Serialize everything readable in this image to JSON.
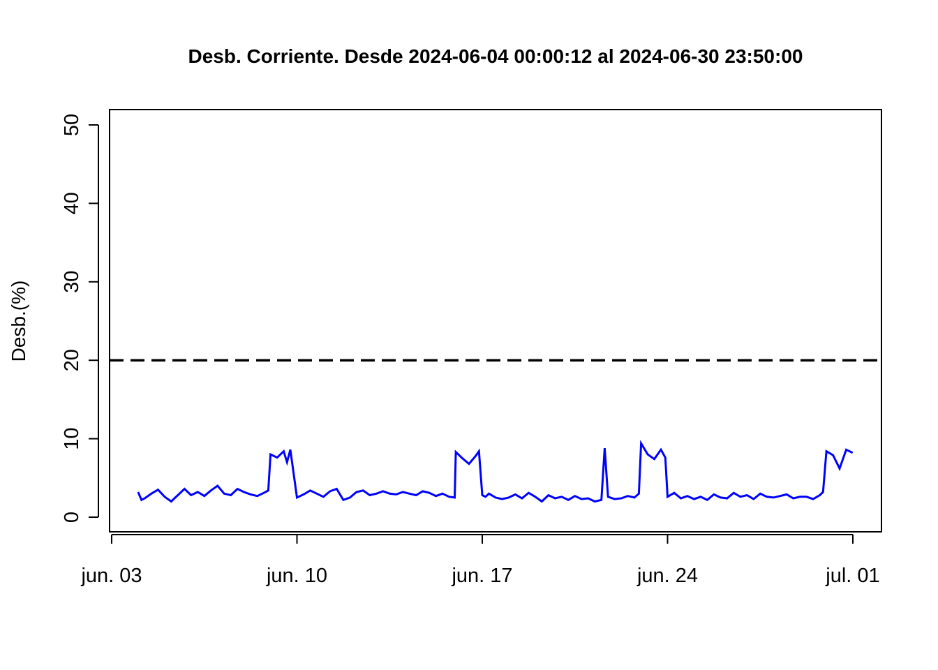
{
  "chart_data": {
    "type": "line",
    "title": "Desb. Corriente. Desde  2024-06-04 00:00:12  al  2024-06-30 23:50:00",
    "xlabel": "",
    "ylabel": "Desb.(%)",
    "xlim": [
      "2024-06-03",
      "2024-07-01"
    ],
    "ylim": [
      0,
      50
    ],
    "x_ticks": [
      {
        "date": "2024-06-03",
        "label": "jun. 03"
      },
      {
        "date": "2024-06-10",
        "label": "jun. 10"
      },
      {
        "date": "2024-06-17",
        "label": "jun. 17"
      },
      {
        "date": "2024-06-24",
        "label": "jun. 24"
      },
      {
        "date": "2024-07-01",
        "label": "jul. 01"
      }
    ],
    "y_ticks": [
      0,
      10,
      20,
      30,
      40,
      50
    ],
    "grid": false,
    "threshold": {
      "value": 20,
      "style": "dashed",
      "color": "#000000"
    },
    "series": [
      {
        "color": "#0000ff",
        "x": [
          "2024-06-04 00:00",
          "2024-06-04 03:00",
          "2024-06-04 06:00",
          "2024-06-04 12:00",
          "2024-06-04 18:00",
          "2024-06-05 00:00",
          "2024-06-05 06:00",
          "2024-06-05 12:00",
          "2024-06-05 18:00",
          "2024-06-06 00:00",
          "2024-06-06 06:00",
          "2024-06-06 12:00",
          "2024-06-06 18:00",
          "2024-06-07 00:00",
          "2024-06-07 06:00",
          "2024-06-07 12:00",
          "2024-06-07 18:00",
          "2024-06-08 00:00",
          "2024-06-08 06:00",
          "2024-06-08 12:00",
          "2024-06-08 18:00",
          "2024-06-08 22:00",
          "2024-06-09 00:00",
          "2024-06-09 06:00",
          "2024-06-09 12:00",
          "2024-06-09 15:00",
          "2024-06-09 18:00",
          "2024-06-10 00:00",
          "2024-06-10 06:00",
          "2024-06-10 12:00",
          "2024-06-10 18:00",
          "2024-06-11 00:00",
          "2024-06-11 06:00",
          "2024-06-11 12:00",
          "2024-06-11 18:00",
          "2024-06-12 00:00",
          "2024-06-12 06:00",
          "2024-06-12 12:00",
          "2024-06-12 18:00",
          "2024-06-13 00:00",
          "2024-06-13 06:00",
          "2024-06-13 12:00",
          "2024-06-13 18:00",
          "2024-06-14 00:00",
          "2024-06-14 06:00",
          "2024-06-14 12:00",
          "2024-06-14 18:00",
          "2024-06-15 00:00",
          "2024-06-15 06:00",
          "2024-06-15 12:00",
          "2024-06-15 18:00",
          "2024-06-15 23:00",
          "2024-06-16 00:00",
          "2024-06-16 06:00",
          "2024-06-16 12:00",
          "2024-06-16 18:00",
          "2024-06-16 21:00",
          "2024-06-17 00:00",
          "2024-06-17 03:00",
          "2024-06-17 06:00",
          "2024-06-17 12:00",
          "2024-06-17 18:00",
          "2024-06-18 00:00",
          "2024-06-18 06:00",
          "2024-06-18 12:00",
          "2024-06-18 18:00",
          "2024-06-19 00:00",
          "2024-06-19 06:00",
          "2024-06-19 12:00",
          "2024-06-19 18:00",
          "2024-06-20 00:00",
          "2024-06-20 06:00",
          "2024-06-20 12:00",
          "2024-06-20 18:00",
          "2024-06-21 00:00",
          "2024-06-21 06:00",
          "2024-06-21 12:00",
          "2024-06-21 15:00",
          "2024-06-21 18:00",
          "2024-06-22 00:00",
          "2024-06-22 06:00",
          "2024-06-22 12:00",
          "2024-06-22 18:00",
          "2024-06-22 22:00",
          "2024-06-23 00:00",
          "2024-06-23 06:00",
          "2024-06-23 12:00",
          "2024-06-23 18:00",
          "2024-06-23 22:00",
          "2024-06-24 00:00",
          "2024-06-24 06:00",
          "2024-06-24 12:00",
          "2024-06-24 18:00",
          "2024-06-25 00:00",
          "2024-06-25 06:00",
          "2024-06-25 12:00",
          "2024-06-25 18:00",
          "2024-06-26 00:00",
          "2024-06-26 06:00",
          "2024-06-26 12:00",
          "2024-06-26 18:00",
          "2024-06-27 00:00",
          "2024-06-27 06:00",
          "2024-06-27 12:00",
          "2024-06-27 18:00",
          "2024-06-28 00:00",
          "2024-06-28 06:00",
          "2024-06-28 12:00",
          "2024-06-28 18:00",
          "2024-06-29 00:00",
          "2024-06-29 06:00",
          "2024-06-29 12:00",
          "2024-06-29 18:00",
          "2024-06-29 21:00",
          "2024-06-30 00:00",
          "2024-06-30 06:00",
          "2024-06-30 12:00",
          "2024-06-30 18:00",
          "2024-06-30 23:50"
        ],
        "y": [
          3.2,
          2.2,
          2.4,
          3.0,
          3.5,
          2.6,
          2.0,
          2.8,
          3.6,
          2.8,
          3.2,
          2.7,
          3.4,
          4.0,
          3.0,
          2.8,
          3.6,
          3.2,
          2.9,
          2.7,
          3.1,
          3.4,
          8.0,
          7.6,
          8.4,
          7.0,
          8.6,
          2.5,
          2.9,
          3.4,
          3.0,
          2.6,
          3.3,
          3.6,
          2.2,
          2.5,
          3.2,
          3.4,
          2.8,
          3.0,
          3.3,
          3.0,
          2.9,
          3.2,
          3.0,
          2.8,
          3.3,
          3.1,
          2.7,
          3.0,
          2.6,
          2.5,
          8.3,
          7.5,
          6.8,
          7.8,
          8.4,
          2.8,
          2.6,
          3.0,
          2.5,
          2.3,
          2.5,
          2.9,
          2.4,
          3.1,
          2.6,
          2.0,
          2.8,
          2.4,
          2.6,
          2.2,
          2.7,
          2.3,
          2.4,
          2.0,
          2.2,
          8.8,
          2.6,
          2.3,
          2.4,
          2.7,
          2.5,
          3.0,
          9.4,
          8.0,
          7.4,
          8.6,
          7.6,
          2.6,
          3.1,
          2.4,
          2.7,
          2.3,
          2.6,
          2.2,
          2.9,
          2.5,
          2.4,
          3.1,
          2.6,
          2.8,
          2.3,
          3.0,
          2.6,
          2.5,
          2.7,
          2.9,
          2.4,
          2.6,
          2.6,
          2.3,
          2.8,
          3.2,
          8.4,
          7.9,
          6.2,
          8.6,
          8.2
        ]
      }
    ]
  }
}
